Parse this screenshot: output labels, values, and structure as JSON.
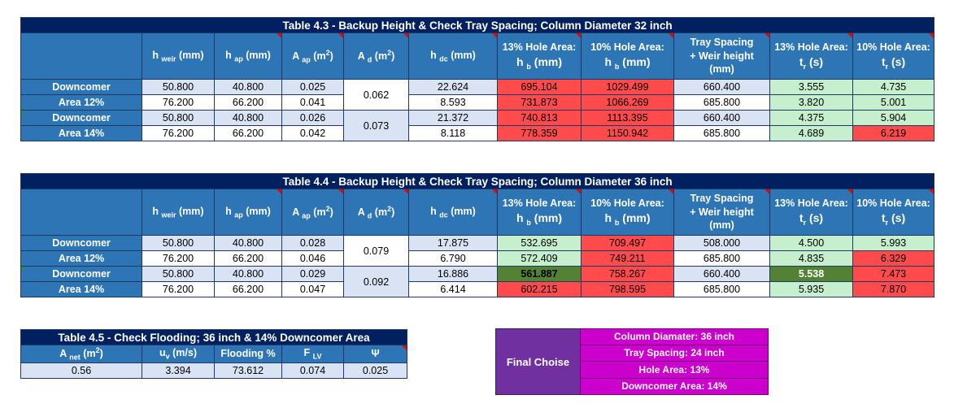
{
  "t43": {
    "title": "Table 4.3 - Backup Height & Check Tray Spacing; Column Diameter 32 inch",
    "rows": [
      [
        "50.800",
        "40.800",
        "0.025",
        "22.624",
        "695.104",
        "1029.499",
        "660.400",
        "3.555",
        "4.735"
      ],
      [
        "76.200",
        "66.200",
        "0.041",
        "8.593",
        "731.873",
        "1066.269",
        "685.800",
        "3.820",
        "5.001"
      ],
      [
        "50.800",
        "40.800",
        "0.026",
        "21.372",
        "740.813",
        "1113.395",
        "660.400",
        "4.375",
        "5.904"
      ],
      [
        "76.200",
        "66.200",
        "0.042",
        "8.118",
        "778.359",
        "1150.942",
        "685.800",
        "4.689",
        "6.219"
      ]
    ],
    "ad": [
      "0.062",
      "0.073"
    ]
  },
  "t44": {
    "title": "Table 4.4 - Backup Height & Check Tray Spacing; Column Diameter 36 inch",
    "rows": [
      [
        "50.800",
        "40.800",
        "0.028",
        "17.875",
        "532.695",
        "709.497",
        "508.000",
        "4.500",
        "5.993"
      ],
      [
        "76.200",
        "66.200",
        "0.046",
        "6.790",
        "572.409",
        "749.211",
        "685.800",
        "4.835",
        "6.329"
      ],
      [
        "50.800",
        "40.800",
        "0.029",
        "16.886",
        "561.887",
        "758.267",
        "660.400",
        "5.538",
        "7.473"
      ],
      [
        "76.200",
        "66.200",
        "0.047",
        "6.414",
        "602.215",
        "798.595",
        "685.800",
        "5.935",
        "7.870"
      ]
    ],
    "ad": [
      "0.079",
      "0.092"
    ]
  },
  "headers": {
    "weir": "weir",
    "ap": "ap",
    "dc": "dc",
    "b": "b",
    "r": "r",
    "d": "d",
    "mm": "(mm)",
    "m2": "(m",
    "hole13": "13% Hole Area:",
    "hole10": "10% Hole Area:",
    "tray1": "Tray Spacing",
    "tray2": "+ Weir height",
    "tray3": "(mm)",
    "s": "(s)"
  },
  "labels": {
    "dc_line1": "Downcomer",
    "area12": "Area 12%",
    "area14": "Area 14%"
  },
  "t45": {
    "title": "Table 4.5 - Check Flooding; 36 inch & 14% Downcomer Area",
    "h_anet": "A",
    "h_anet_sub": "net",
    "h_anet_unit": "(m",
    "h_uv": "u",
    "h_uv_sub": "v",
    "h_uv_unit": " (m/s)",
    "h_flood": "Flooding %",
    "h_flv": "F",
    "h_flv_sub": "LV",
    "h_psi": "Ψ",
    "values": [
      "0.56",
      "3.394",
      "73.612",
      "0.074",
      "0.025"
    ]
  },
  "final": {
    "label": "Final Choise",
    "items": [
      "Column Diamater: 36 inch",
      "Tray Spacing: 24 inch",
      "Hole Area: 13%",
      "Downcomer Area: 14%"
    ]
  }
}
